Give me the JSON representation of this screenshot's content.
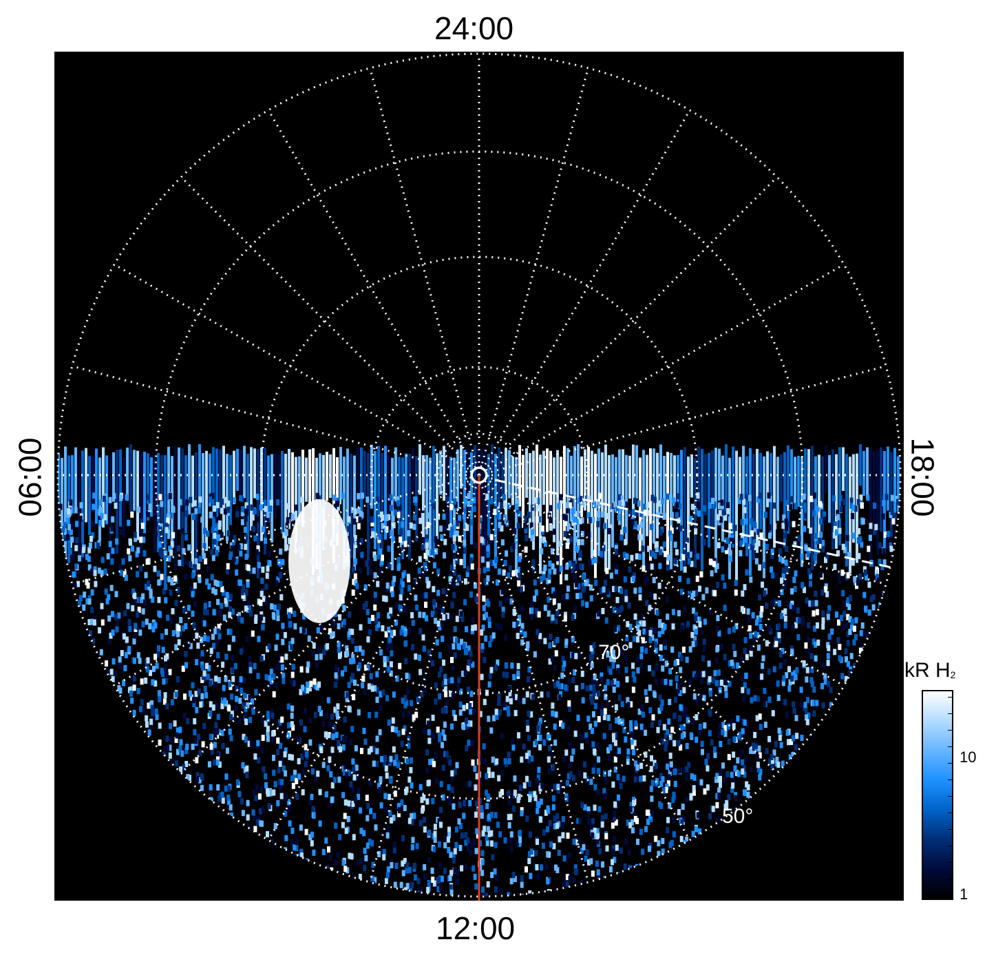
{
  "mlt_labels": {
    "top": "24:00",
    "bottom": "12:00",
    "left": "06:00",
    "right": "18:00"
  },
  "latitude_labels": [
    {
      "text": "70°",
      "latitude_deg": 70
    },
    {
      "text": "50°",
      "latitude_deg": 50
    }
  ],
  "colorbar": {
    "title_main": "kR H",
    "title_sub": "2",
    "tick_labels": [
      "10",
      "1"
    ],
    "colors": [
      "#000000",
      "#000a3a",
      "#00307a",
      "#0064c8",
      "#1e90ff",
      "#64b4ff",
      "#b4dcff",
      "#ffffff"
    ]
  },
  "colors": {
    "background": "#000000",
    "grid": "#ffffff",
    "meridian_line": "#e04010",
    "dashed_boundary": "#ffffff"
  }
}
